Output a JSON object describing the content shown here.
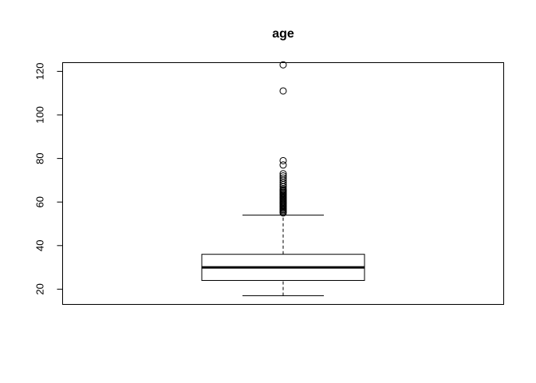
{
  "chart_data": {
    "type": "boxplot",
    "title": "age",
    "xlabel": "",
    "ylabel": "",
    "ylim": [
      13,
      124
    ],
    "yticks": [
      20,
      40,
      60,
      80,
      100,
      120
    ],
    "yticks_labels": [
      "20",
      "40",
      "60",
      "80",
      "100",
      "120"
    ],
    "box": {
      "whisker_low": 17,
      "q1": 24,
      "median": 30,
      "q3": 36,
      "whisker_high": 54
    },
    "outliers": [
      55,
      55.5,
      56,
      56.5,
      57,
      57.5,
      58,
      58.5,
      59,
      59.5,
      60,
      60.5,
      61,
      61.5,
      62,
      62.5,
      63,
      63.5,
      64,
      64.5,
      65,
      65.5,
      66,
      67,
      68,
      69,
      70,
      71,
      72,
      73,
      77,
      79,
      111,
      123
    ],
    "grid": false,
    "legend": "none"
  }
}
